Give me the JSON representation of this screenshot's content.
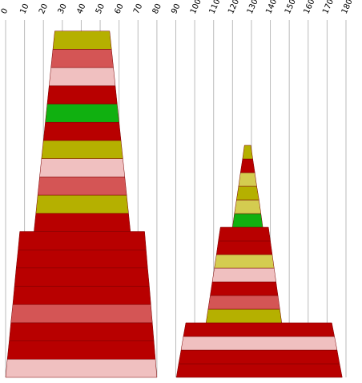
{
  "chart_data": {
    "type": "stack",
    "xlim": [
      0,
      180
    ],
    "xticks": [
      0,
      10,
      20,
      30,
      40,
      50,
      60,
      70,
      80,
      90,
      100,
      110,
      120,
      130,
      140,
      150,
      160,
      170,
      180
    ],
    "grid": true,
    "stacks": [
      {
        "bands": [
          {
            "color": "#f0c0c0",
            "bottom": [
              0,
              80
            ],
            "top": [
              0.9,
              79.2
            ]
          },
          {
            "color": "#b80000",
            "bottom": [
              0.9,
              79.2
            ],
            "top": [
              1.9,
              78.4
            ]
          },
          {
            "color": "#b80000",
            "bottom": [
              1.9,
              78.4
            ],
            "top": [
              2.8,
              77.6
            ]
          },
          {
            "color": "#d45555",
            "bottom": [
              2.8,
              77.6
            ],
            "top": [
              3.8,
              76.8
            ]
          },
          {
            "color": "#b80000",
            "bottom": [
              3.8,
              76.8
            ],
            "top": [
              4.7,
              76
            ]
          },
          {
            "color": "#b80000",
            "bottom": [
              4.7,
              76
            ],
            "top": [
              5.6,
              75.1
            ]
          },
          {
            "color": "#b80000",
            "bottom": [
              5.6,
              75.1
            ],
            "top": [
              6.6,
              74.3
            ]
          },
          {
            "color": "#b80000",
            "bottom": [
              6.6,
              74.3
            ],
            "top": [
              7.5,
              73.5
            ]
          },
          {
            "color": "#b80000",
            "bottom": [
              15,
              66
            ],
            "top": [
              16,
              65
            ]
          },
          {
            "color": "#b5b000",
            "bottom": [
              16,
              65
            ],
            "top": [
              17,
              64
            ]
          },
          {
            "color": "#d45555",
            "bottom": [
              17,
              64
            ],
            "top": [
              18,
              63
            ]
          },
          {
            "color": "#f0c0c0",
            "bottom": [
              18,
              63
            ],
            "top": [
              19,
              62
            ]
          },
          {
            "color": "#b5b000",
            "bottom": [
              19,
              62
            ],
            "top": [
              20,
              61
            ]
          },
          {
            "color": "#b80000",
            "bottom": [
              20,
              61
            ],
            "top": [
              21,
              60
            ]
          },
          {
            "color": "#10b010",
            "bottom": [
              21,
              60
            ],
            "top": [
              22,
              59
            ]
          },
          {
            "color": "#b80000",
            "bottom": [
              22,
              59
            ],
            "top": [
              23,
              58
            ]
          },
          {
            "color": "#f0c0c0",
            "bottom": [
              23,
              58
            ],
            "top": [
              24,
              57
            ]
          },
          {
            "color": "#d45555",
            "bottom": [
              24,
              57
            ],
            "top": [
              25,
              56
            ]
          },
          {
            "color": "#b5b000",
            "bottom": [
              25,
              56
            ],
            "top": [
              26,
              55
            ]
          }
        ]
      },
      {
        "bands": [
          {
            "color": "#b80000",
            "bottom": [
              90.3,
              178
            ],
            "top": [
              91.5,
              176.6
            ]
          },
          {
            "color": "#b80000",
            "bottom": [
              91.5,
              176.6
            ],
            "top": [
              92.8,
              175.3
            ]
          },
          {
            "color": "#f0c0c0",
            "bottom": [
              92.8,
              175.3
            ],
            "top": [
              94,
              173.9
            ]
          },
          {
            "color": "#b80000",
            "bottom": [
              94,
              173.9
            ],
            "top": [
              95.3,
              172.5
            ]
          },
          {
            "color": "#b5b000",
            "bottom": [
              106,
              146
            ],
            "top": [
              107.1,
              145
            ]
          },
          {
            "color": "#d45555",
            "bottom": [
              107.1,
              145
            ],
            "top": [
              108.2,
              144
            ]
          },
          {
            "color": "#b80000",
            "bottom": [
              108.2,
              144
            ],
            "top": [
              109.3,
              143
            ]
          },
          {
            "color": "#f0c0c0",
            "bottom": [
              109.3,
              143
            ],
            "top": [
              110.4,
              142
            ]
          },
          {
            "color": "#d4cc50",
            "bottom": [
              110.4,
              142
            ],
            "top": [
              111.5,
              141
            ]
          },
          {
            "color": "#b80000",
            "bottom": [
              111.5,
              141
            ],
            "top": [
              112.5,
              140
            ]
          },
          {
            "color": "#b80000",
            "bottom": [
              112.5,
              140
            ],
            "top": [
              113.6,
              139
            ]
          },
          {
            "color": "#10b010",
            "bottom": [
              120,
              136
            ],
            "top": [
              121,
              135
            ]
          },
          {
            "color": "#d4cc50",
            "bottom": [
              121,
              135
            ],
            "top": [
              122.1,
              134
            ]
          },
          {
            "color": "#b5b000",
            "bottom": [
              122.1,
              134
            ],
            "top": [
              123.2,
              132.8
            ]
          },
          {
            "color": "#d4cc50",
            "bottom": [
              123.2,
              132.8
            ],
            "top": [
              124.2,
              131.8
            ]
          },
          {
            "color": "#b80000",
            "bottom": [
              124.2,
              131.8
            ],
            "top": [
              125.3,
              130.7
            ]
          },
          {
            "color": "#b5b000",
            "bottom": [
              125.3,
              130.7
            ],
            "top": [
              126.3,
              129.7
            ]
          }
        ]
      }
    ]
  }
}
